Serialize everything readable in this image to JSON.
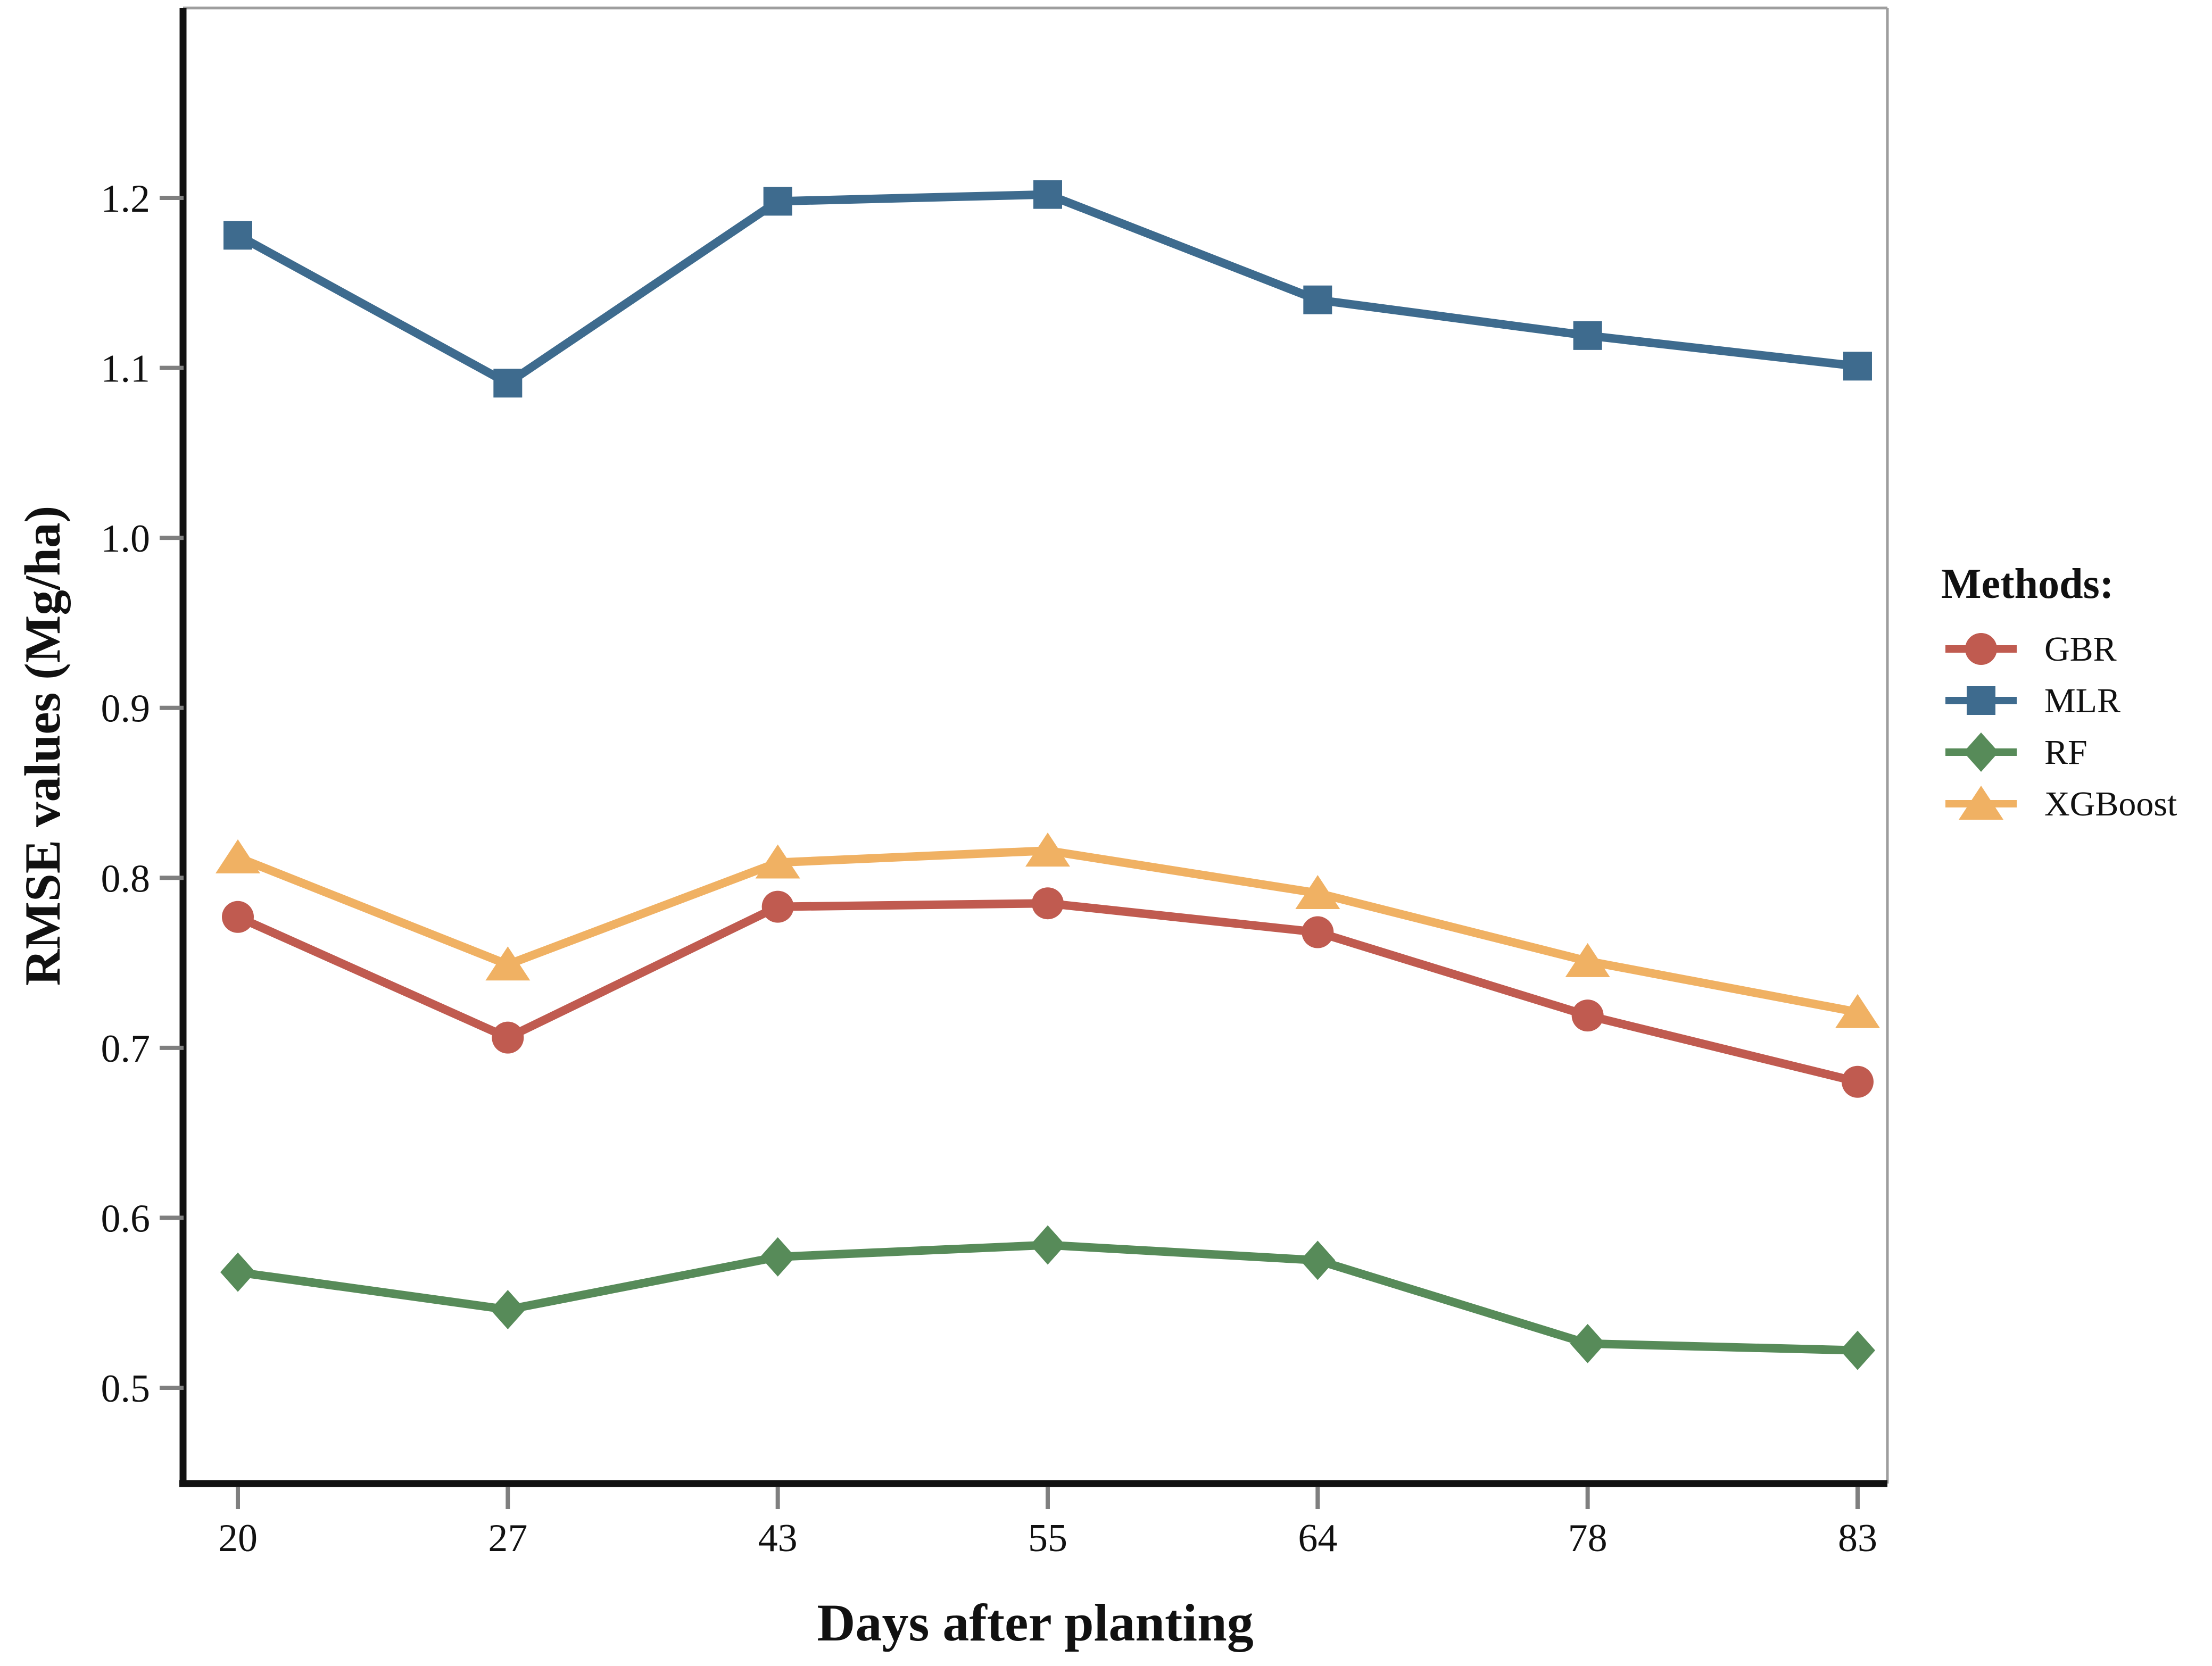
{
  "chart_data": {
    "type": "line",
    "title": "",
    "xlabel": "Days after planting",
    "ylabel": "RMSE values (Mg/ha)",
    "categories": [
      "20",
      "27",
      "43",
      "55",
      "64",
      "78",
      "83"
    ],
    "yticks": [
      "0.5",
      "0.6",
      "0.7",
      "0.8",
      "0.9",
      "1.0",
      "1.1",
      "1.2"
    ],
    "ylim": [
      0.444,
      1.312
    ],
    "grid": false,
    "legend_title": "Methods:",
    "legend_position": "right-center",
    "series": [
      {
        "name": "GBR",
        "marker": "circle",
        "color": "#C05B50",
        "values": [
          0.777,
          0.706,
          0.783,
          0.785,
          0.768,
          0.719,
          0.68
        ]
      },
      {
        "name": "MLR",
        "marker": "square",
        "color": "#3E6B8E",
        "values": [
          1.178,
          1.091,
          1.198,
          1.202,
          1.14,
          1.119,
          1.101
        ]
      },
      {
        "name": "RF",
        "marker": "diamond",
        "color": "#578B59",
        "values": [
          0.568,
          0.546,
          0.577,
          0.584,
          0.575,
          0.526,
          0.522
        ]
      },
      {
        "name": "XGBoost",
        "marker": "triangle",
        "color": "#F0B163",
        "values": [
          0.812,
          0.749,
          0.809,
          0.816,
          0.791,
          0.751,
          0.721
        ]
      }
    ],
    "style": {
      "axis_color": "#111111",
      "tick_color": "#7f7f7f",
      "panel_border_color": "#9e9e9e",
      "text_color": "#111111",
      "background": "#ffffff"
    }
  }
}
